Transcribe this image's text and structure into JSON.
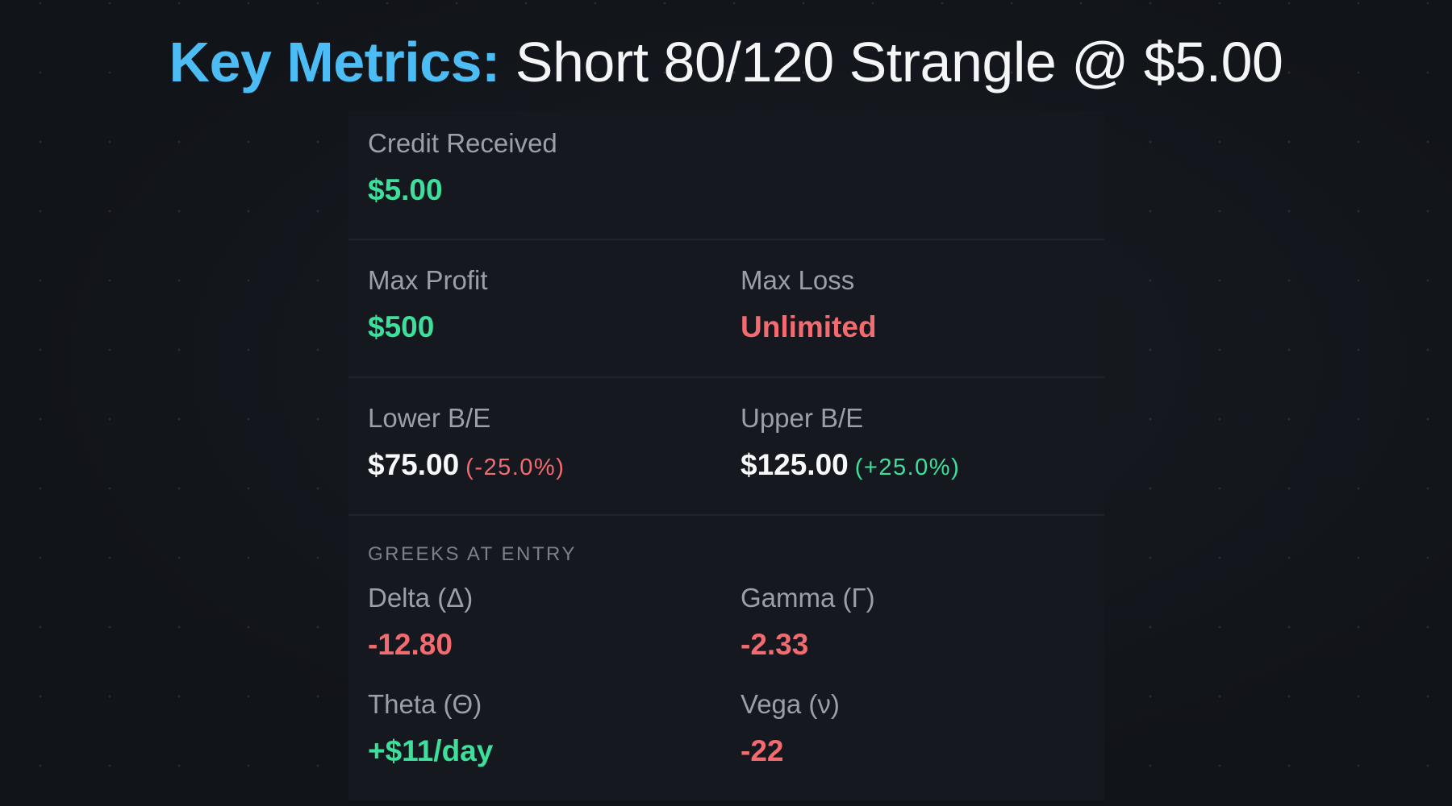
{
  "title": {
    "key": "Key Metrics:",
    "rest": "Short 80/120 Strangle @ $5.00"
  },
  "credit": {
    "label": "Credit Received",
    "value": "$5.00"
  },
  "max_profit": {
    "label": "Max Profit",
    "value": "$500"
  },
  "max_loss": {
    "label": "Max Loss",
    "value": "Unlimited"
  },
  "lower_be": {
    "label": "Lower B/E",
    "value": "$75.00",
    "pct": "(-25.0%)"
  },
  "upper_be": {
    "label": "Upper B/E",
    "value": "$125.00",
    "pct": "(+25.0%)"
  },
  "greeks": {
    "header": "GREEKS AT ENTRY",
    "delta": {
      "label": "Delta (Δ)",
      "value": "-12.80"
    },
    "gamma": {
      "label": "Gamma (Γ)",
      "value": "-2.33"
    },
    "theta": {
      "label": "Theta (Θ)",
      "value": "+$11/day"
    },
    "vega": {
      "label": "Vega (ν)",
      "value": "-22"
    }
  },
  "colors": {
    "accent_blue": "#4cbdf4",
    "positive_green": "#3ce09a",
    "negative_red": "#f26b70",
    "background": "#111419",
    "card": "#15181e"
  }
}
